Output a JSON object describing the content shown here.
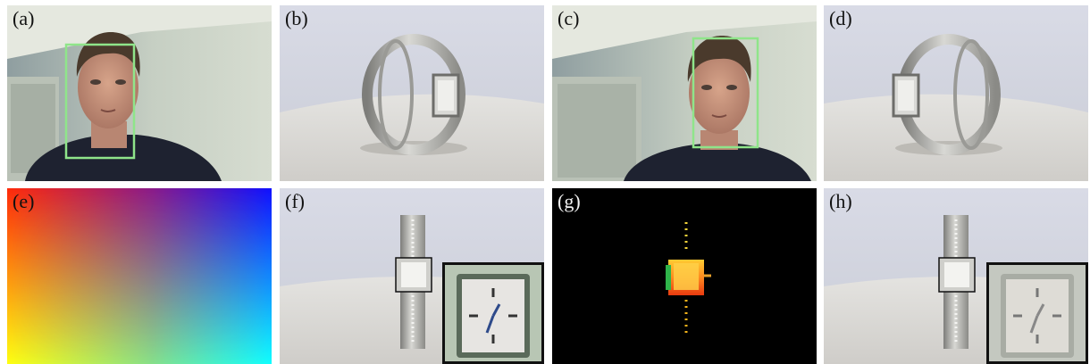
{
  "panels": {
    "a": {
      "label": "(a)",
      "content": "person-with-face-detection"
    },
    "b": {
      "label": "(b)",
      "content": "watch-side-view"
    },
    "c": {
      "label": "(c)",
      "content": "person-with-face-detection"
    },
    "d": {
      "label": "(d)",
      "content": "watch-side-view"
    },
    "e": {
      "label": "(e)",
      "content": "color-gradient"
    },
    "f": {
      "label": "(f)",
      "content": "watch-front-with-inset"
    },
    "g": {
      "label": "(g)",
      "content": "watch-heatmap"
    },
    "h": {
      "label": "(h)",
      "content": "watch-front-with-inset"
    }
  },
  "colors": {
    "detection_box": "#8fe58a",
    "page_bg": "#ffffff",
    "heatmap_bg": "#000000"
  }
}
